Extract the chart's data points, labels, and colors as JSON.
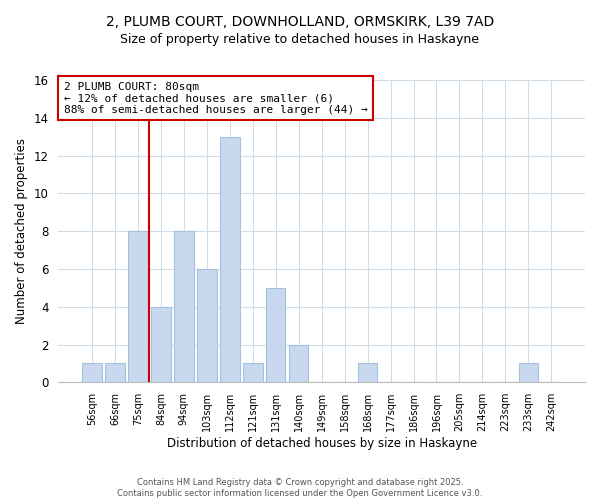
{
  "title_line1": "2, PLUMB COURT, DOWNHOLLAND, ORMSKIRK, L39 7AD",
  "title_line2": "Size of property relative to detached houses in Haskayne",
  "xlabel": "Distribution of detached houses by size in Haskayne",
  "ylabel": "Number of detached properties",
  "bar_labels": [
    "56sqm",
    "66sqm",
    "75sqm",
    "84sqm",
    "94sqm",
    "103sqm",
    "112sqm",
    "121sqm",
    "131sqm",
    "140sqm",
    "149sqm",
    "158sqm",
    "168sqm",
    "177sqm",
    "186sqm",
    "196sqm",
    "205sqm",
    "214sqm",
    "223sqm",
    "233sqm",
    "242sqm"
  ],
  "bar_values": [
    1,
    1,
    8,
    4,
    8,
    6,
    13,
    1,
    5,
    2,
    0,
    0,
    1,
    0,
    0,
    0,
    0,
    0,
    0,
    1,
    0
  ],
  "bar_color": "#c8d8ee",
  "bar_edge_color": "#a8c0e0",
  "vline_color": "#cc0000",
  "annotation_text": "2 PLUMB COURT: 80sqm\n← 12% of detached houses are smaller (6)\n88% of semi-detached houses are larger (44) →",
  "annotation_box_facecolor": "#ffffff",
  "annotation_box_edgecolor": "#cc0000",
  "ylim": [
    0,
    16
  ],
  "yticks": [
    0,
    2,
    4,
    6,
    8,
    10,
    12,
    14,
    16
  ],
  "footer_line1": "Contains HM Land Registry data © Crown copyright and database right 2025.",
  "footer_line2": "Contains public sector information licensed under the Open Government Licence v3.0.",
  "bg_color": "#ffffff",
  "plot_bg_color": "#ffffff",
  "grid_color": "#d0dce8"
}
